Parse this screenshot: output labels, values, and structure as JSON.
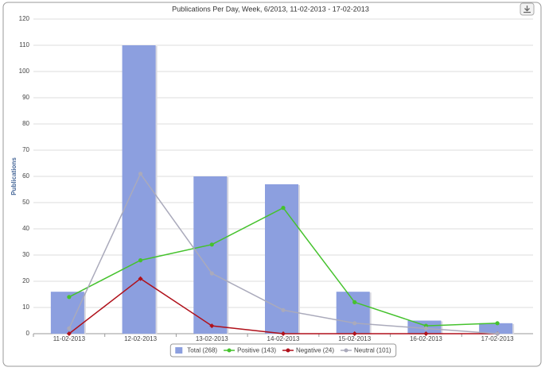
{
  "chart_data": {
    "type": "bar",
    "title": "Publications Per Day, Week, 6/2013, 11-02-2013 - 17-02-2013",
    "y_label": "Publications",
    "categories": [
      "11-02-2013",
      "12-02-2013",
      "13-02-2013",
      "14-02-2013",
      "15-02-2013",
      "16-02-2013",
      "17-02-2013"
    ],
    "series": [
      {
        "name": "Total (268)",
        "type": "bar",
        "color": "#8c9fdf",
        "values": [
          16,
          110,
          60,
          57,
          16,
          5,
          4
        ]
      },
      {
        "name": "Positive (143)",
        "type": "line",
        "color": "#45c22d",
        "values": [
          14,
          28,
          34,
          48,
          12,
          3,
          4
        ]
      },
      {
        "name": "Negative (24)",
        "type": "line",
        "color": "#b0111b",
        "values": [
          0,
          21,
          3,
          0,
          0,
          0,
          0
        ]
      },
      {
        "name": "Neutral (101)",
        "type": "line",
        "color": "#aaaabb",
        "values": [
          2,
          61,
          23,
          9,
          4,
          2,
          0
        ]
      }
    ],
    "ylim": [
      0,
      120
    ],
    "yticks": [
      0,
      10,
      20,
      30,
      40,
      50,
      60,
      70,
      80,
      90,
      100,
      110,
      120
    ],
    "grid": true,
    "legend": "bottom"
  }
}
